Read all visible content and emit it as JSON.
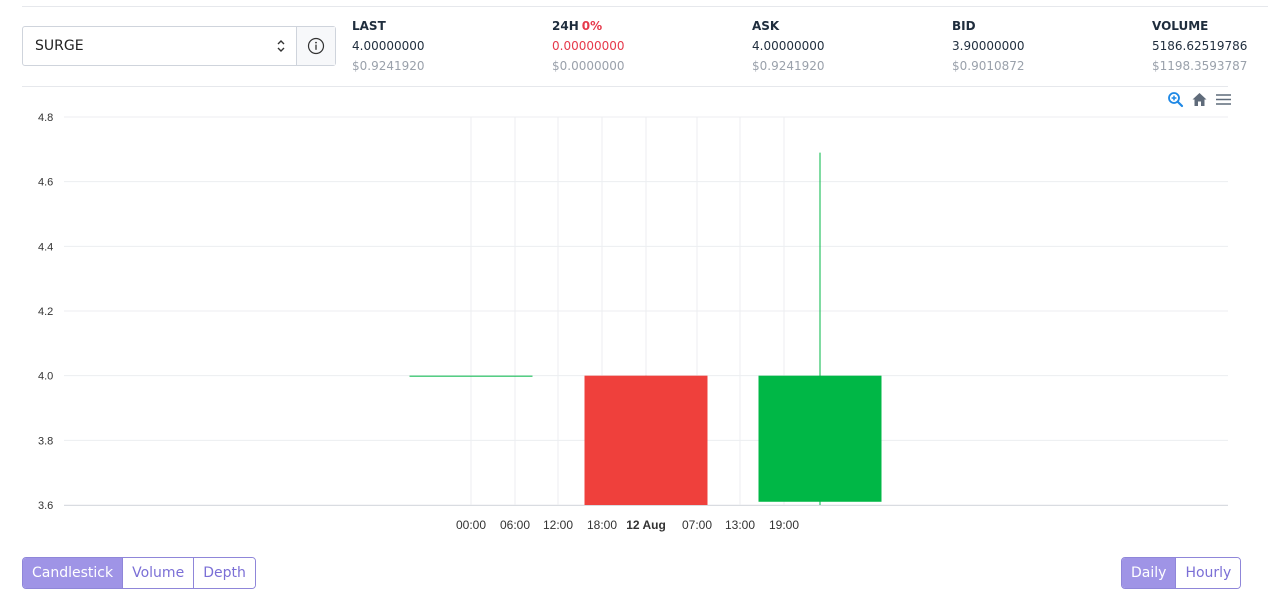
{
  "market": {
    "selected": "SURGE",
    "info_icon": "info-circle-icon",
    "caret_icon": "up-down-caret-icon"
  },
  "stats": {
    "last": {
      "label": "LAST",
      "value": "4.00000000",
      "usd": "$0.9241920"
    },
    "h24": {
      "label": "24H",
      "pct": "0%",
      "value": "0.00000000",
      "usd": "$0.0000000"
    },
    "ask": {
      "label": "ASK",
      "value": "4.00000000",
      "usd": "$0.9241920"
    },
    "bid": {
      "label": "BID",
      "value": "3.90000000",
      "usd": "$0.9010872"
    },
    "volume": {
      "label": "VOLUME",
      "value": "5186.62519786",
      "usd": "$1198.3593787"
    }
  },
  "toolbar": {
    "icons": [
      "zoom-in-icon",
      "home-icon",
      "menu-icon"
    ]
  },
  "colors": {
    "up": "#00b746",
    "down": "#ef403c",
    "accent": "#9f94e6",
    "negative_text": "#e6394b"
  },
  "chart_data": {
    "type": "candlestick",
    "ylim": [
      3.6,
      4.8
    ],
    "y_ticks": [
      "4.8",
      "4.6",
      "4.4",
      "4.2",
      "4.0",
      "3.8",
      "3.6"
    ],
    "x_ticks": [
      {
        "label": "00:00",
        "bold": false
      },
      {
        "label": "06:00",
        "bold": false
      },
      {
        "label": "12:00",
        "bold": false
      },
      {
        "label": "18:00",
        "bold": false
      },
      {
        "label": "12 Aug",
        "bold": true
      },
      {
        "label": "07:00",
        "bold": false
      },
      {
        "label": "13:00",
        "bold": false
      },
      {
        "label": "19:00",
        "bold": false
      }
    ],
    "candles": [
      {
        "open": 4.0,
        "high": 4.0,
        "low": 4.0,
        "close": 4.0
      },
      {
        "open": 4.0,
        "high": 4.0,
        "low": 3.6,
        "close": 3.6
      },
      {
        "open": 3.61,
        "high": 4.69,
        "low": 3.6,
        "close": 4.0
      }
    ],
    "grid": true
  },
  "chart_types": {
    "items": [
      "Candlestick",
      "Volume",
      "Depth"
    ],
    "active": "Candlestick"
  },
  "intervals": {
    "items": [
      "Daily",
      "Hourly"
    ],
    "active": "Daily"
  }
}
